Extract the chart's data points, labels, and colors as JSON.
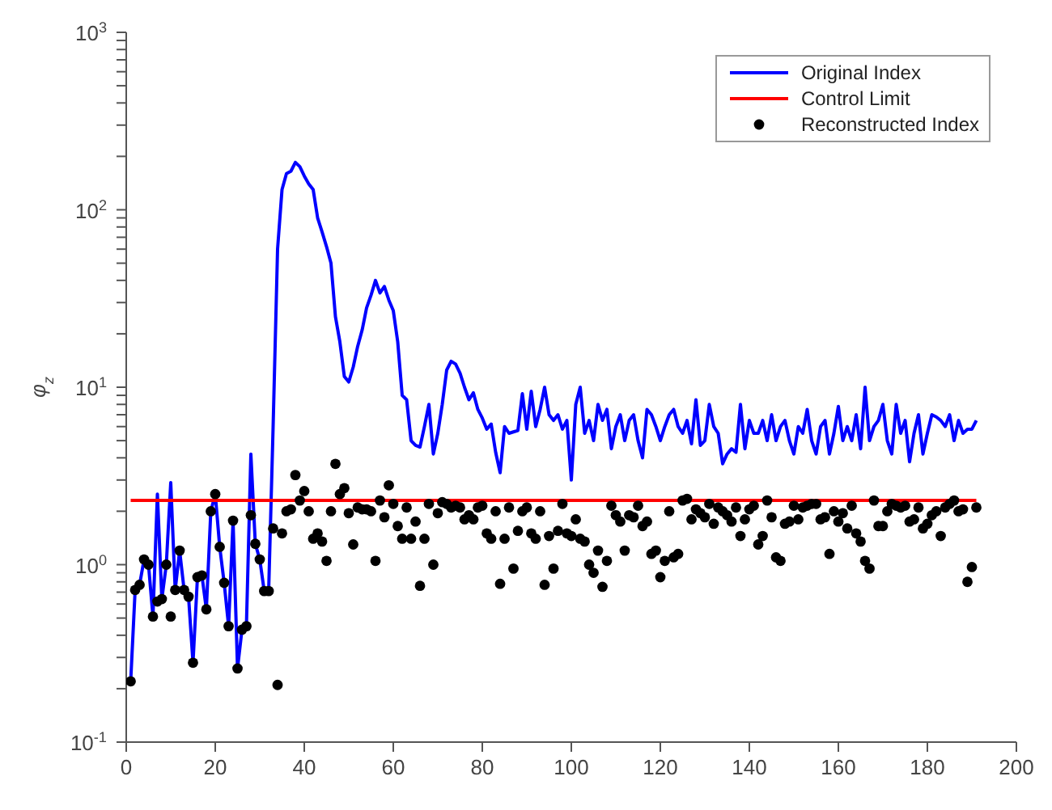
{
  "chart_data": {
    "type": "line",
    "ylabel": "φ$_{z}$",
    "log": "y",
    "grid": false,
    "legend": "top right",
    "xlim": [
      0,
      200
    ],
    "xticks": [
      0,
      20,
      40,
      60,
      80,
      100,
      120,
      140,
      160,
      180,
      200
    ],
    "ylim": [
      0.1,
      1000
    ],
    "yticks": [
      {
        "value": 0.1,
        "label": "10$^{-1}$"
      },
      {
        "value": 0.2,
        "label": null
      },
      {
        "value": 0.3,
        "label": null
      },
      {
        "value": 0.4,
        "label": null
      },
      {
        "value": 0.5,
        "label": null
      },
      {
        "value": 0.6,
        "label": null
      },
      {
        "value": 0.7,
        "label": null
      },
      {
        "value": 0.8,
        "label": null
      },
      {
        "value": 0.9,
        "label": null
      },
      {
        "value": 1,
        "label": "10$^{0}$"
      },
      {
        "value": 2,
        "label": null
      },
      {
        "value": 3,
        "label": null
      },
      {
        "value": 4,
        "label": null
      },
      {
        "value": 5,
        "label": null
      },
      {
        "value": 6,
        "label": null
      },
      {
        "value": 7,
        "label": null
      },
      {
        "value": 8,
        "label": null
      },
      {
        "value": 9,
        "label": null
      },
      {
        "value": 10,
        "label": "10$^{1}$"
      },
      {
        "value": 20,
        "label": null
      },
      {
        "value": 30,
        "label": null
      },
      {
        "value": 40,
        "label": null
      },
      {
        "value": 50,
        "label": null
      },
      {
        "value": 60,
        "label": null
      },
      {
        "value": 70,
        "label": null
      },
      {
        "value": 80,
        "label": null
      },
      {
        "value": 90,
        "label": null
      },
      {
        "value": 100,
        "label": "10$^{2}$"
      },
      {
        "value": 200,
        "label": null
      },
      {
        "value": 300,
        "label": null
      },
      {
        "value": 400,
        "label": null
      },
      {
        "value": 500,
        "label": null
      },
      {
        "value": 600,
        "label": null
      },
      {
        "value": 700,
        "label": null
      },
      {
        "value": 800,
        "label": null
      },
      {
        "value": 900,
        "label": null
      },
      {
        "value": 1000,
        "label": "10$^{3}$"
      }
    ],
    "series": [
      {
        "name": "Original Index",
        "color": "#0000ff",
        "marker": "none",
        "x": [
          1,
          2,
          3,
          4,
          5,
          6,
          7,
          8,
          9,
          10,
          11,
          12,
          13,
          14,
          15,
          16,
          17,
          18,
          19,
          20,
          21,
          22,
          23,
          24,
          25,
          26,
          27,
          28,
          29,
          30,
          31,
          32,
          33,
          34,
          35,
          36,
          37,
          38,
          39,
          40,
          41,
          42,
          43,
          44,
          45,
          46,
          47,
          48,
          49,
          50,
          51,
          52,
          53,
          54,
          55,
          56,
          57,
          58,
          59,
          60,
          61,
          62,
          63,
          64,
          65,
          66,
          67,
          68,
          69,
          70,
          71,
          72,
          73,
          74,
          75,
          76,
          77,
          78,
          79,
          80,
          81,
          82,
          83,
          84,
          85,
          86,
          87,
          88,
          89,
          90,
          91,
          92,
          93,
          94,
          95,
          96,
          97,
          98,
          99,
          100,
          101,
          102,
          103,
          104,
          105,
          106,
          107,
          108,
          109,
          110,
          111,
          112,
          113,
          114,
          115,
          116,
          117,
          118,
          119,
          120,
          121,
          122,
          123,
          124,
          125,
          126,
          127,
          128,
          129,
          130,
          131,
          132,
          133,
          134,
          135,
          136,
          137,
          138,
          139,
          140,
          141,
          142,
          143,
          144,
          145,
          146,
          147,
          148,
          149,
          150,
          151,
          152,
          153,
          154,
          155,
          156,
          157,
          158,
          159,
          160,
          161,
          162,
          163,
          164,
          165,
          166,
          167,
          168,
          169,
          170,
          171,
          172,
          173,
          174,
          175,
          176,
          177,
          178,
          179,
          180,
          181,
          182,
          183,
          184,
          185,
          186,
          187,
          188,
          189,
          190,
          191
        ],
        "values": [
          0.22,
          0.72,
          0.77,
          1.07,
          1.0,
          0.51,
          2.5,
          0.64,
          1.0,
          2.9,
          0.72,
          1.2,
          0.72,
          0.66,
          0.28,
          0.85,
          0.87,
          0.56,
          2.0,
          2.5,
          1.26,
          0.79,
          0.45,
          1.77,
          0.26,
          0.43,
          0.45,
          4.2,
          1.31,
          1.07,
          0.71,
          0.71,
          6,
          60,
          130,
          160,
          165,
          185,
          175,
          155,
          140,
          130,
          90,
          75,
          62,
          50,
          25,
          18,
          11.5,
          10.7,
          13,
          17,
          21,
          28,
          33,
          40,
          34,
          37,
          31,
          27,
          18,
          9,
          8.5,
          5,
          4.7,
          4.6,
          6,
          8,
          4.2,
          5.5,
          8,
          12.5,
          14,
          13.5,
          12,
          10,
          8.5,
          9.3,
          7.5,
          6.7,
          5.8,
          6.2,
          4.3,
          3.3,
          6,
          5.5,
          5.6,
          5.7,
          9.2,
          5.8,
          9.5,
          6,
          7.5,
          10,
          7,
          6.5,
          7,
          5.8,
          6.5,
          3.0,
          8,
          10,
          5.5,
          6.5,
          5,
          8,
          6.5,
          7.5,
          4.5,
          6,
          7,
          5,
          6.5,
          7,
          5,
          4,
          7.5,
          7,
          6,
          5,
          6,
          7,
          7.5,
          6,
          5.5,
          6.5,
          4.8,
          8.5,
          4.7,
          5,
          8,
          6,
          5.5,
          3.7,
          4.2,
          4.5,
          4.3,
          8,
          4.5,
          6.5,
          5.5,
          5.5,
          6.5,
          5,
          7,
          5,
          6,
          6.5,
          5,
          4.2,
          6,
          5.5,
          7.5,
          5,
          4.2,
          6,
          6.5,
          4.2,
          5.5,
          7.8,
          5,
          6,
          5,
          7,
          4.5,
          10,
          5,
          6,
          6.5,
          8,
          5,
          4.2,
          8,
          5.5,
          6.5,
          3.8,
          5.5,
          7,
          4.2,
          5.5,
          7,
          6.8,
          6.5,
          6,
          7,
          5,
          6.5,
          5.5,
          5.8,
          5.8,
          6.5
        ]
      },
      {
        "name": "Control Limit",
        "color": "#ff0000",
        "marker": "none",
        "x": [
          1,
          191
        ],
        "values": [
          2.3,
          2.3
        ]
      },
      {
        "name": "Reconstructed Index",
        "type": "scatter",
        "color": "#000000",
        "marker": "circle",
        "x": [
          1,
          2,
          3,
          4,
          5,
          6,
          7,
          8,
          9,
          10,
          11,
          12,
          13,
          14,
          15,
          16,
          17,
          18,
          19,
          20,
          21,
          22,
          23,
          24,
          25,
          26,
          27,
          28,
          29,
          30,
          31,
          32,
          33,
          34,
          35,
          36,
          37,
          38,
          39,
          40,
          41,
          42,
          43,
          44,
          45,
          46,
          47,
          48,
          49,
          50,
          51,
          52,
          53,
          54,
          55,
          56,
          57,
          58,
          59,
          60,
          61,
          62,
          63,
          64,
          65,
          66,
          67,
          68,
          69,
          70,
          71,
          72,
          73,
          74,
          75,
          76,
          77,
          78,
          79,
          80,
          81,
          82,
          83,
          84,
          85,
          86,
          87,
          88,
          89,
          90,
          91,
          92,
          93,
          94,
          95,
          96,
          97,
          98,
          99,
          100,
          101,
          102,
          103,
          104,
          105,
          106,
          107,
          108,
          109,
          110,
          111,
          112,
          113,
          114,
          115,
          116,
          117,
          118,
          119,
          120,
          121,
          122,
          123,
          124,
          125,
          126,
          127,
          128,
          129,
          130,
          131,
          132,
          133,
          134,
          135,
          136,
          137,
          138,
          139,
          140,
          141,
          142,
          143,
          144,
          145,
          146,
          147,
          148,
          149,
          150,
          151,
          152,
          153,
          154,
          155,
          156,
          157,
          158,
          159,
          160,
          161,
          162,
          163,
          164,
          165,
          166,
          167,
          168,
          169,
          170,
          171,
          172,
          173,
          174,
          175,
          176,
          177,
          178,
          179,
          180,
          181,
          182,
          183,
          184,
          185,
          186,
          187,
          188,
          189,
          190,
          191
        ],
        "values": [
          0.22,
          0.72,
          0.77,
          1.07,
          1.0,
          0.51,
          0.62,
          0.64,
          1.0,
          0.51,
          0.72,
          1.2,
          0.72,
          0.66,
          0.28,
          0.85,
          0.87,
          0.56,
          2.0,
          2.5,
          1.26,
          0.79,
          0.45,
          1.77,
          0.26,
          0.43,
          0.45,
          1.9,
          1.31,
          1.07,
          0.71,
          0.71,
          1.6,
          0.21,
          1.5,
          2.0,
          2.05,
          3.2,
          2.3,
          2.6,
          2.0,
          1.4,
          1.5,
          1.35,
          1.05,
          2.0,
          3.7,
          2.5,
          2.7,
          1.95,
          1.3,
          2.1,
          2.05,
          2.05,
          2.0,
          1.05,
          2.3,
          1.85,
          2.8,
          2.2,
          1.65,
          1.4,
          2.1,
          1.4,
          1.75,
          0.76,
          1.4,
          2.2,
          1.0,
          1.95,
          2.25,
          2.2,
          2.1,
          2.15,
          2.1,
          1.8,
          1.9,
          1.8,
          2.1,
          2.15,
          1.5,
          1.4,
          2.0,
          0.78,
          1.4,
          2.1,
          0.95,
          1.55,
          2.0,
          2.1,
          1.5,
          1.4,
          2.0,
          0.77,
          1.45,
          0.95,
          1.55,
          2.2,
          1.5,
          1.45,
          1.8,
          1.4,
          1.35,
          1.0,
          0.9,
          1.2,
          0.75,
          1.05,
          2.15,
          1.9,
          1.75,
          1.2,
          1.9,
          1.85,
          2.15,
          1.65,
          1.75,
          1.15,
          1.2,
          0.85,
          1.05,
          2.0,
          1.1,
          1.15,
          2.3,
          2.35,
          1.8,
          2.05,
          1.95,
          1.85,
          2.2,
          1.7,
          2.1,
          2.0,
          1.9,
          1.75,
          2.1,
          1.45,
          1.8,
          2.05,
          2.15,
          1.3,
          1.45,
          2.3,
          1.85,
          1.1,
          1.05,
          1.7,
          1.75,
          2.15,
          1.8,
          2.1,
          2.15,
          2.2,
          2.2,
          1.8,
          1.85,
          1.15,
          2.0,
          1.75,
          1.95,
          1.6,
          2.15,
          1.5,
          1.35,
          1.05,
          0.95,
          2.3,
          1.65,
          1.65,
          2.0,
          2.2,
          2.15,
          2.1,
          2.15,
          1.75,
          1.8,
          2.1,
          1.6,
          1.7,
          1.9,
          2.0,
          1.45,
          2.1,
          2.2,
          2.3,
          2.0,
          2.05,
          0.8,
          0.97,
          2.1
        ]
      }
    ]
  }
}
